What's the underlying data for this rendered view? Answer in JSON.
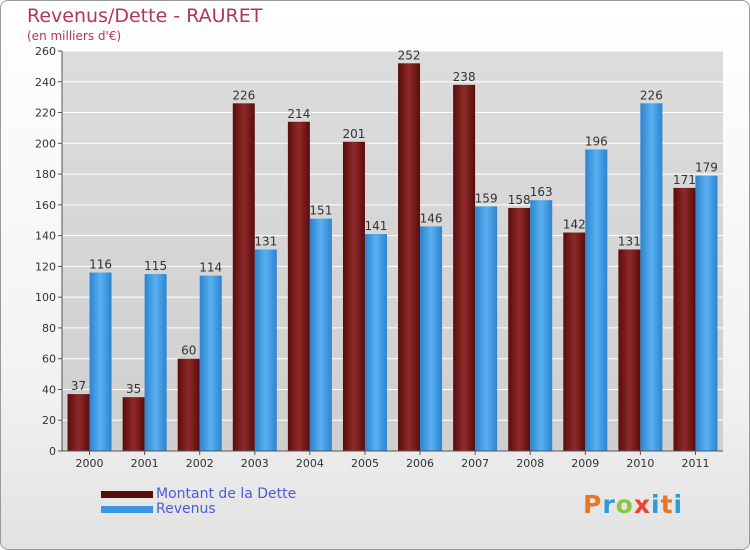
{
  "title": "Revenus/Dette - RAURET",
  "subtitle": "(en milliers d'€)",
  "logo_text": "Proxiti",
  "colors": {
    "dette": "#7a1c1c",
    "revenus": "#3a96e0",
    "title": "#b2335f",
    "legend_text": "#4c5cd6",
    "grid": "#ffffff",
    "axis": "#555555",
    "logo_p": "#e87722",
    "logo_r": "#2e9ad6",
    "logo_o": "#8cc63f",
    "logo_x": "#e8442e",
    "logo_i": "#2e9ad6",
    "logo_t": "#e87722"
  },
  "chart_data": {
    "type": "bar",
    "title": "Revenus/Dette - RAURET",
    "subtitle": "(en milliers d'€)",
    "categories": [
      "2000",
      "2001",
      "2002",
      "2003",
      "2004",
      "2005",
      "2006",
      "2007",
      "2008",
      "2009",
      "2010",
      "2011"
    ],
    "series": [
      {
        "name": "Montant de la Dette",
        "values": [
          37,
          35,
          60,
          226,
          214,
          201,
          252,
          238,
          158,
          142,
          131,
          171
        ]
      },
      {
        "name": "Revenus",
        "values": [
          116,
          115,
          114,
          131,
          151,
          141,
          146,
          159,
          163,
          196,
          226,
          179
        ]
      }
    ],
    "ylim": [
      0,
      260
    ],
    "yticks": [
      0,
      20,
      40,
      60,
      80,
      100,
      120,
      140,
      160,
      180,
      200,
      220,
      240,
      260
    ],
    "grid": true,
    "legend_placement": "bottom-left",
    "xlabel": "",
    "ylabel": ""
  }
}
